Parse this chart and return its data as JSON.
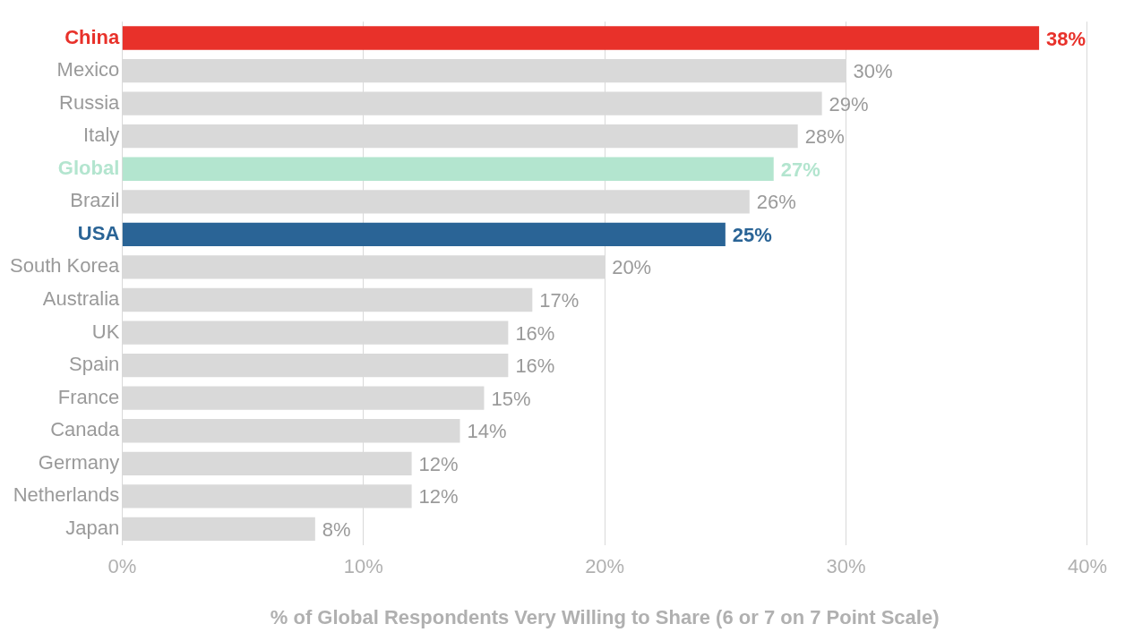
{
  "chart_data": {
    "type": "bar",
    "orientation": "horizontal",
    "xlabel": "% of Global Respondents Very Willing to Share (6 or 7 on 7 Point Scale)",
    "categories": [
      "China",
      "Mexico",
      "Russia",
      "Italy",
      "Global",
      "Brazil",
      "USA",
      "South Korea",
      "Australia",
      "UK",
      "Spain",
      "France",
      "Canada",
      "Germany",
      "Netherlands",
      "Japan"
    ],
    "values": [
      38,
      30,
      29,
      28,
      27,
      26,
      25,
      20,
      17,
      16,
      16,
      15,
      14,
      12,
      12,
      8
    ],
    "colors": [
      "#e8312a",
      "#d9d9d9",
      "#d9d9d9",
      "#d9d9d9",
      "#b3e5cf",
      "#d9d9d9",
      "#2a6496",
      "#d9d9d9",
      "#d9d9d9",
      "#d9d9d9",
      "#d9d9d9",
      "#d9d9d9",
      "#d9d9d9",
      "#d9d9d9",
      "#d9d9d9",
      "#d9d9d9"
    ],
    "value_labels": [
      "38%",
      "30%",
      "29%",
      "28%",
      "27%",
      "26%",
      "25%",
      "20%",
      "17%",
      "16%",
      "16%",
      "15%",
      "14%",
      "12%",
      "12%",
      "8%"
    ],
    "xlim": [
      0,
      40
    ],
    "xticks": [
      {
        "value": 0,
        "label": "0%"
      },
      {
        "value": 10,
        "label": "10%"
      },
      {
        "value": 20,
        "label": "20%"
      },
      {
        "value": 30,
        "label": "30%"
      },
      {
        "value": 40,
        "label": "40%"
      }
    ],
    "grid": "x",
    "legend": false
  }
}
